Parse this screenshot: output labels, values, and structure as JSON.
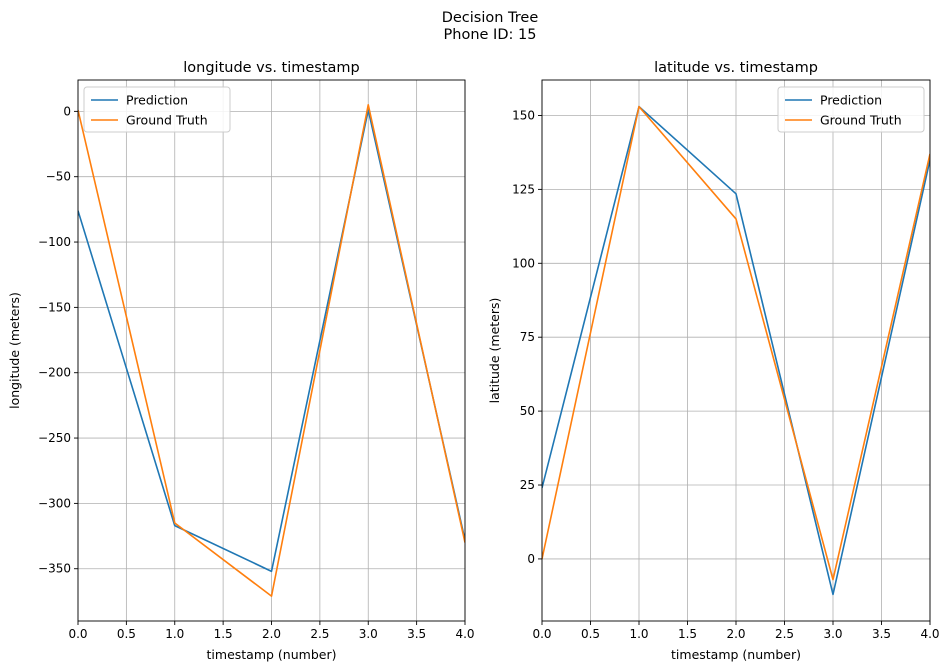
{
  "figure": {
    "title_line1": "Decision Tree",
    "title_line2": "Phone ID: 15"
  },
  "chart_data": [
    {
      "type": "line",
      "title": "longitude vs. timestamp",
      "xlabel": "timestamp (number)",
      "ylabel": "longitude (meters)",
      "xlim": [
        0,
        4
      ],
      "ylim": [
        -390,
        24
      ],
      "xticks": [
        0.0,
        0.5,
        1.0,
        1.5,
        2.0,
        2.5,
        3.0,
        3.5,
        4.0
      ],
      "xtick_labels": [
        "0.0",
        "0.5",
        "1.0",
        "1.5",
        "2.0",
        "2.5",
        "3.0",
        "3.5",
        "4.0"
      ],
      "yticks": [
        0,
        -50,
        -100,
        -150,
        -200,
        -250,
        -300,
        -350
      ],
      "ytick_labels": [
        "0",
        "−50",
        "−100",
        "−150",
        "−200",
        "−250",
        "−300",
        "−350"
      ],
      "grid": true,
      "legend_position": "upper-left",
      "x": [
        0,
        1,
        2,
        3,
        4
      ],
      "series": [
        {
          "name": "Prediction",
          "color": "#1f77b4",
          "values": [
            -76,
            -317,
            -352,
            1,
            -328
          ]
        },
        {
          "name": "Ground Truth",
          "color": "#ff7f0e",
          "values": [
            1,
            -315,
            -371,
            5,
            -330
          ]
        }
      ]
    },
    {
      "type": "line",
      "title": "latitude vs. timestamp",
      "xlabel": "timestamp (number)",
      "ylabel": "latitude (meters)",
      "xlim": [
        0,
        4
      ],
      "ylim": [
        -21,
        162
      ],
      "xticks": [
        0.0,
        0.5,
        1.0,
        1.5,
        2.0,
        2.5,
        3.0,
        3.5,
        4.0
      ],
      "xtick_labels": [
        "0.0",
        "0.5",
        "1.0",
        "1.5",
        "2.0",
        "2.5",
        "3.0",
        "3.5",
        "4.0"
      ],
      "yticks": [
        0,
        25,
        50,
        75,
        100,
        125,
        150
      ],
      "ytick_labels": [
        "0",
        "25",
        "50",
        "75",
        "100",
        "125",
        "150"
      ],
      "grid": true,
      "legend_position": "upper-right",
      "x": [
        0,
        1,
        2,
        3,
        4
      ],
      "series": [
        {
          "name": "Prediction",
          "color": "#1f77b4",
          "values": [
            24,
            153,
            123.5,
            -12,
            135
          ]
        },
        {
          "name": "Ground Truth",
          "color": "#ff7f0e",
          "values": [
            0,
            153,
            115,
            -7,
            137
          ]
        }
      ]
    }
  ]
}
